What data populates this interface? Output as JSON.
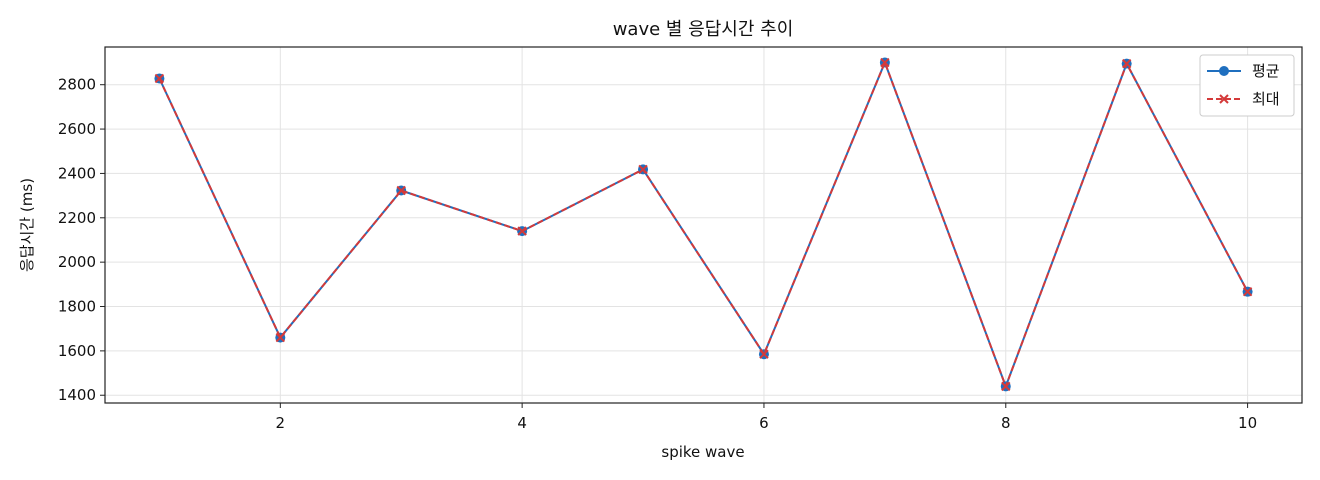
{
  "chart_data": {
    "type": "line",
    "title": "wave 별 응답시간 추이",
    "xlabel": "spike wave",
    "ylabel": "응답시간 (ms)",
    "x": [
      1,
      2,
      3,
      4,
      5,
      6,
      7,
      8,
      9,
      10
    ],
    "xlim": [
      0.55,
      10.45
    ],
    "ylim": [
      1365,
      2970
    ],
    "xticks": [
      2,
      4,
      6,
      8,
      10
    ],
    "yticks": [
      1400,
      1600,
      1800,
      2000,
      2200,
      2400,
      2600,
      2800
    ],
    "grid": true,
    "legend_position": "top-right",
    "series": [
      {
        "name": "평균",
        "values": [
          2828,
          1660,
          2323,
          2140,
          2418,
          1585,
          2900,
          1440,
          2895,
          1867
        ],
        "color": "#1f6fbf",
        "marker": "circle",
        "line_style": "solid"
      },
      {
        "name": "최대",
        "values": [
          2828,
          1660,
          2323,
          2140,
          2418,
          1585,
          2900,
          1440,
          2895,
          1867
        ],
        "color": "#d43a3a",
        "marker": "x",
        "line_style": "dashed"
      }
    ]
  }
}
